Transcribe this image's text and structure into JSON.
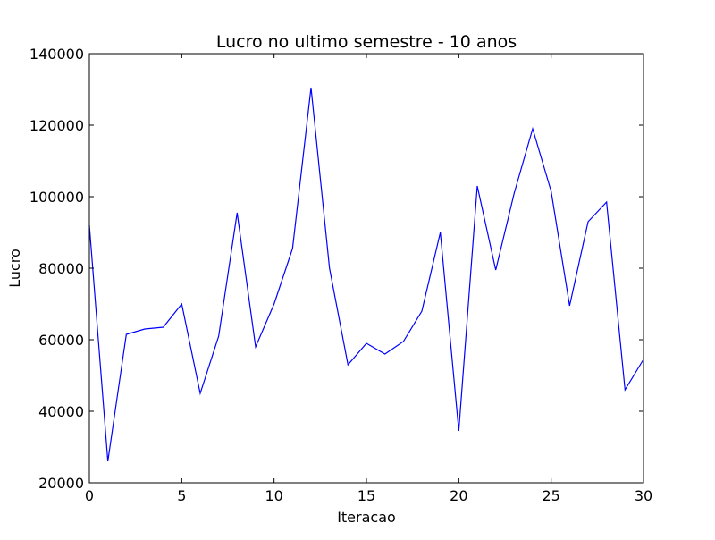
{
  "chart_data": {
    "type": "line",
    "title": "Lucro no ultimo semestre - 10 anos",
    "xlabel": "Iteracao",
    "ylabel": "Lucro",
    "xlim": [
      0,
      30
    ],
    "ylim": [
      20000,
      140000
    ],
    "xticks": [
      "0",
      "5",
      "10",
      "15",
      "20",
      "25",
      "30"
    ],
    "yticks": [
      "20000",
      "40000",
      "60000",
      "80000",
      "100000",
      "120000",
      "140000"
    ],
    "grid": false,
    "legend": "none",
    "series": [
      {
        "color": "#0000ff",
        "x": [
          0,
          1,
          2,
          3,
          4,
          5,
          6,
          7,
          8,
          9,
          10,
          11,
          12,
          13,
          14,
          15,
          16,
          17,
          18,
          19,
          20,
          21,
          22,
          23,
          24,
          25,
          26,
          27,
          28,
          29,
          30
        ],
        "values": [
          92000,
          26000,
          61500,
          63000,
          63500,
          70000,
          45000,
          61000,
          95500,
          58000,
          70000,
          85500,
          130500,
          80000,
          53000,
          59000,
          56000,
          59500,
          68000,
          90000,
          34500,
          103000,
          79500,
          101000,
          119000,
          101500,
          69500,
          93000,
          98500,
          46000,
          54500
        ]
      }
    ]
  }
}
